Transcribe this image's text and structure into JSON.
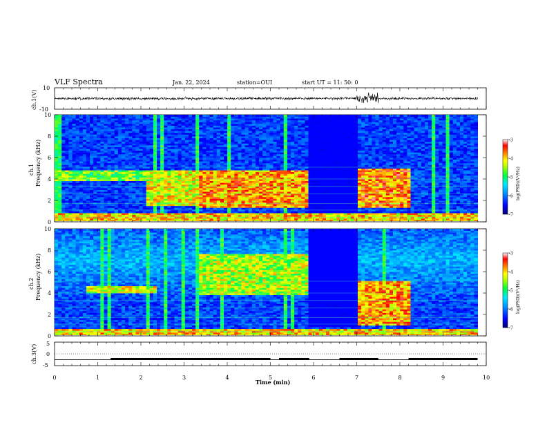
{
  "header": {
    "title": "VLF Spectra",
    "date": "Jan. 22, 2024",
    "station": "station=OUI",
    "start": "start UT =  11: 50: 0"
  },
  "colorbar": {
    "label": "log(PSD)(V²/Hz)",
    "ticks": [
      "-3",
      "-4",
      "-5",
      "-6",
      "-7"
    ],
    "range": [
      -7,
      -3
    ],
    "colors": [
      "#000080",
      "#0000ff",
      "#0080ff",
      "#00e0ff",
      "#00ff60",
      "#a0ff00",
      "#ffff00",
      "#ff8000",
      "#ff0000",
      "#ffffff"
    ]
  },
  "chart_data": [
    {
      "type": "line",
      "panel": "ch1-waveform",
      "ylabel": "ch.1(V)",
      "ylim": [
        -10,
        10
      ],
      "yticks": [
        "10",
        "-10"
      ],
      "description_values": {
        "baseline": 0,
        "typical_amplitude": 1,
        "burst_window_min": [
          7.0,
          7.5
        ]
      }
    },
    {
      "type": "heatmap",
      "panel": "ch1-spectrogram",
      "ylabel": "ch.1\nFrequency (kHz)",
      "ylabel_lines": [
        "ch.1",
        "Frequency (kHz)"
      ],
      "ylim": [
        0,
        10
      ],
      "yticks": [
        "0",
        "2",
        "4",
        "6",
        "8",
        "10"
      ],
      "xlim": [
        0,
        10
      ],
      "bands": [
        {
          "t0": 0.0,
          "t1": 2.1,
          "f0": 3.8,
          "f1": 4.7,
          "level": -4.6
        },
        {
          "t0": 2.1,
          "t1": 3.3,
          "f0": 1.5,
          "f1": 4.8,
          "level": -4.2
        },
        {
          "t0": 3.3,
          "t1": 5.85,
          "f0": 1.2,
          "f1": 4.8,
          "level": -3.8
        },
        {
          "t0": 7.0,
          "t1": 8.2,
          "f0": 1.2,
          "f1": 4.9,
          "level": -3.7
        },
        {
          "t0": 0.0,
          "t1": 9.8,
          "f0": 0.0,
          "f1": 0.7,
          "level": -4.0
        }
      ]
    },
    {
      "type": "heatmap",
      "panel": "ch2-spectrogram",
      "ylabel": "ch.2\nFrequency (kHz)",
      "ylabel_lines": [
        "ch.2",
        "Frequency (kHz)"
      ],
      "ylim": [
        0,
        10
      ],
      "yticks": [
        "0",
        "2",
        "4",
        "6",
        "8",
        "10"
      ],
      "xlim": [
        0,
        10
      ],
      "bands": [
        {
          "t0": 0.7,
          "t1": 2.3,
          "f0": 3.9,
          "f1": 4.6,
          "level": -4.2
        },
        {
          "t0": 3.3,
          "t1": 5.85,
          "f0": 3.7,
          "f1": 7.5,
          "level": -4.4
        },
        {
          "t0": 7.0,
          "t1": 8.2,
          "f0": 1.0,
          "f1": 5.0,
          "level": -3.8
        },
        {
          "t0": 0.0,
          "t1": 9.8,
          "f0": 0.0,
          "f1": 0.6,
          "level": -4.0
        }
      ]
    },
    {
      "type": "line",
      "panel": "ch3-waveform",
      "ylabel": "ch.3(V)",
      "ylim": [
        -5,
        5
      ],
      "yticks": [
        "5",
        "0",
        "-5"
      ],
      "xlabel": "Time (min)",
      "xlim": [
        0,
        10
      ],
      "xticks": [
        "0",
        "1",
        "2",
        "3",
        "4",
        "5",
        "6",
        "7",
        "8",
        "9",
        "10"
      ],
      "baseline_v": -2.5,
      "high_segments_min": [
        [
          1.3,
          5.0
        ],
        [
          5.2,
          5.9
        ],
        [
          6.6,
          7.5
        ],
        [
          8.2,
          9.8
        ]
      ]
    }
  ]
}
